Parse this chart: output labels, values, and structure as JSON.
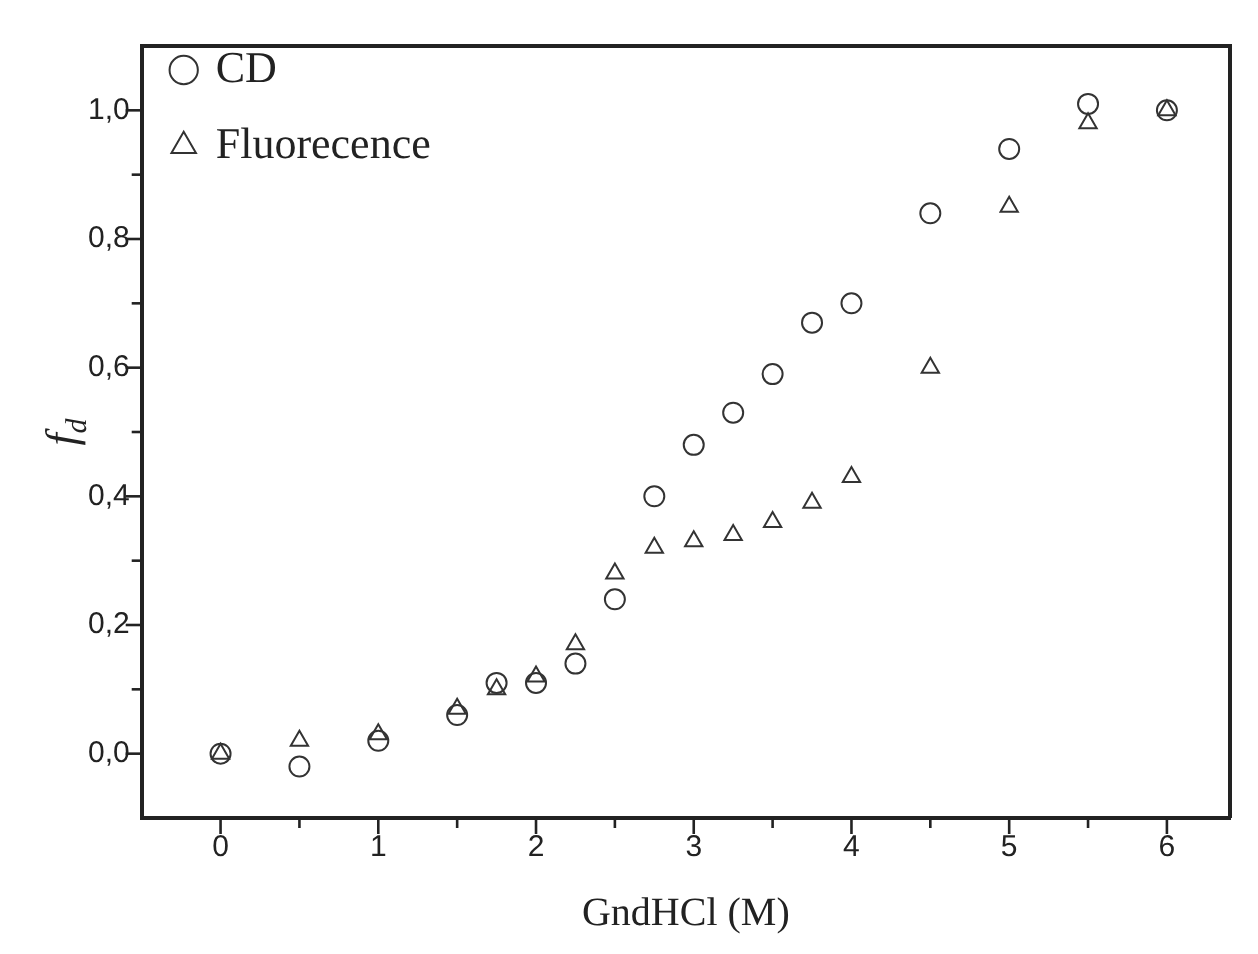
{
  "chart_data": {
    "type": "scatter",
    "xlabel": "GndHCl (M)",
    "ylabel": "f$_{d}$",
    "xlim": [
      -0.5,
      6.4
    ],
    "ylim": [
      -0.1,
      1.1
    ],
    "xticks": [
      0,
      {
        "value": 0.5,
        "label": null
      },
      1,
      {
        "value": 1.5,
        "label": null
      },
      2,
      {
        "value": 2.5,
        "label": null
      },
      3,
      {
        "value": 3.5,
        "label": null
      },
      4,
      {
        "value": 4.5,
        "label": null
      },
      5,
      {
        "value": 5.5,
        "label": null
      },
      6
    ],
    "yticks": [
      {
        "value": 0,
        "label": "0,0"
      },
      {
        "value": 0.1,
        "label": null
      },
      {
        "value": 0.2,
        "label": "0,2"
      },
      {
        "value": 0.3,
        "label": null
      },
      {
        "value": 0.4,
        "label": "0,4"
      },
      {
        "value": 0.5,
        "label": null
      },
      {
        "value": 0.6,
        "label": "0,6"
      },
      {
        "value": 0.7,
        "label": null
      },
      {
        "value": 0.8,
        "label": "0,8"
      },
      {
        "value": 0.9,
        "label": null
      },
      {
        "value": 1,
        "label": "1,0"
      }
    ],
    "grid": false,
    "legend": "top left",
    "series": [
      {
        "name": "CD",
        "color": "#333333",
        "marker": "circle",
        "x": [
          0,
          0.5,
          1,
          1.5,
          1.75,
          2,
          2.25,
          2.5,
          2.75,
          3,
          3.25,
          3.5,
          3.75,
          4,
          4.5,
          5,
          5.5,
          6
        ],
        "values": [
          0.0,
          -0.02,
          0.02,
          0.06,
          0.11,
          0.11,
          0.14,
          0.24,
          0.4,
          0.48,
          0.53,
          0.59,
          0.67,
          0.7,
          0.84,
          0.94,
          1.01,
          1.0
        ]
      },
      {
        "name": "Fluorecence",
        "color": "#333333",
        "marker": "triangle",
        "x": [
          0,
          0.5,
          1,
          1.5,
          1.75,
          2,
          2.25,
          2.5,
          2.75,
          3,
          3.25,
          3.5,
          3.75,
          4,
          4.5,
          5,
          5.5,
          6
        ],
        "values": [
          0.0,
          0.02,
          0.03,
          0.07,
          0.1,
          0.12,
          0.17,
          0.28,
          0.32,
          0.33,
          0.34,
          0.36,
          0.39,
          0.43,
          0.6,
          0.85,
          0.98,
          1.0
        ]
      }
    ]
  }
}
